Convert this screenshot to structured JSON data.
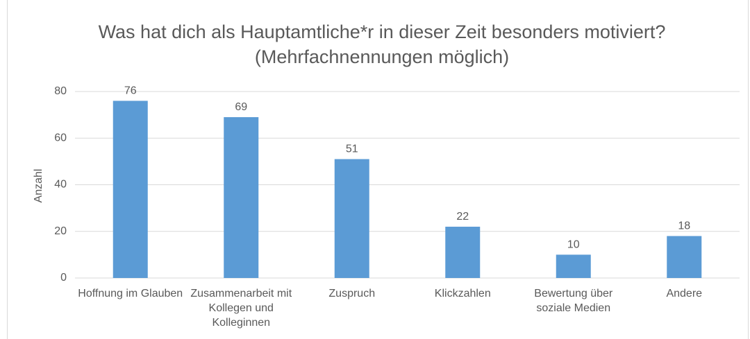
{
  "chart_data": {
    "type": "bar",
    "title": "Was hat dich als Hauptamtliche*r in dieser Zeit besonders motiviert? (Mehrfachnennungen möglich)",
    "y_label": "Anzahl",
    "categories": [
      "Hoffnung im Glauben",
      "Zusammenarbeit mit Kollegen und Kolleginnen",
      "Zuspruch",
      "Klickzahlen",
      "Bewertung über soziale Medien",
      "Andere"
    ],
    "values": [
      76,
      69,
      51,
      22,
      10,
      18
    ],
    "color": "#5b9bd5",
    "ylim": [
      0,
      80
    ],
    "yticks": [
      0,
      20,
      40,
      60,
      80
    ],
    "grid": true
  }
}
